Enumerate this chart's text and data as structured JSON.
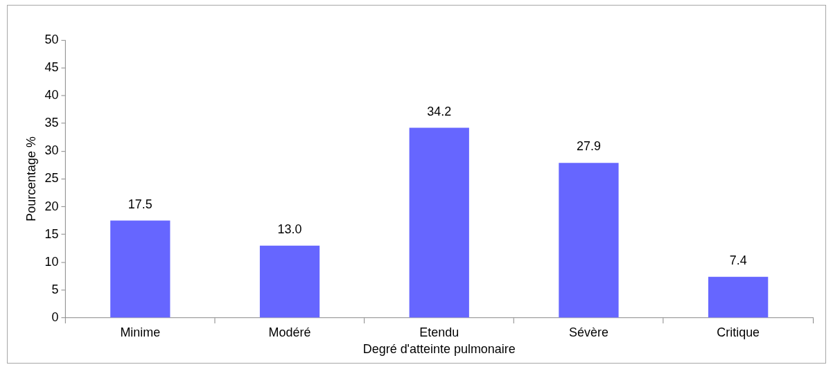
{
  "chart_data": {
    "type": "bar",
    "xlabel": "Degré d'atteinte pulmonaire",
    "ylabel": "Pourcentage %",
    "categories": [
      "Minime",
      "Modéré",
      "Etendu",
      "Sévère",
      "Critique"
    ],
    "values": [
      17.5,
      13.0,
      34.2,
      27.9,
      7.4
    ],
    "value_labels": [
      "17.5",
      "13.0",
      "34.2",
      "27.9",
      "7.4"
    ],
    "color": "#6666ff",
    "ylim": [
      0,
      50
    ],
    "yticks": [
      0,
      5,
      10,
      15,
      20,
      25,
      30,
      35,
      40,
      45,
      50
    ],
    "grid": false,
    "legend": false
  }
}
